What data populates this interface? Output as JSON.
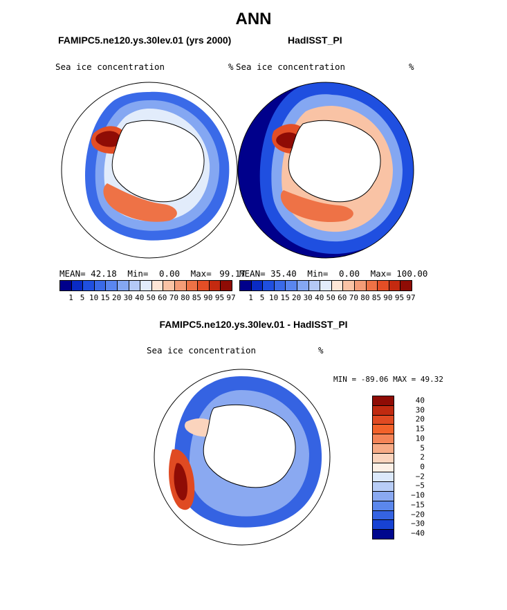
{
  "title": "ANN",
  "left_panel": {
    "title": "FAMIPC5.ne120.ys.30lev.01 (yrs 2000)",
    "variable": "Sea ice concentration",
    "units": "%",
    "stats": {
      "mean_label": "MEAN=",
      "mean": "42.18",
      "min_label": "Min=",
      "min": "0.00",
      "max_label": "Max=",
      "max": "99.17"
    }
  },
  "right_panel": {
    "title": "HadISST_PI",
    "variable": "Sea ice concentration",
    "units": "%",
    "stats": {
      "mean_label": "MEAN=",
      "mean": "35.40",
      "min_label": "Min=",
      "min": "0.00",
      "max_label": "Max=",
      "max": "100.00"
    }
  },
  "diff_panel": {
    "title": "FAMIPC5.ne120.ys.30lev.01 - HadISST_PI",
    "variable": "Sea ice concentration",
    "units": "%",
    "minmax_text": "MIN = -89.06 MAX =  49.32"
  },
  "chart_data": [
    {
      "type": "heatmap",
      "projection": "south polar stereographic",
      "title": "FAMIPC5.ne120.ys.30lev.01 (yrs 2000)",
      "variable": "Sea ice concentration (%)",
      "mean": 42.18,
      "min": 0.0,
      "max": 99.17,
      "contour_levels": [
        1,
        5,
        10,
        15,
        20,
        30,
        40,
        50,
        60,
        70,
        80,
        85,
        90,
        95,
        97
      ],
      "colorbar_labels": [
        "1",
        "5",
        "10",
        "15",
        "20",
        "30",
        "40",
        "50",
        "60",
        "70",
        "80",
        "85",
        "90",
        "95",
        "97"
      ]
    },
    {
      "type": "heatmap",
      "projection": "south polar stereographic",
      "title": "HadISST_PI",
      "variable": "Sea ice concentration (%)",
      "mean": 35.4,
      "min": 0.0,
      "max": 100.0,
      "contour_levels": [
        1,
        5,
        10,
        15,
        20,
        30,
        40,
        50,
        60,
        70,
        80,
        85,
        90,
        95,
        97
      ],
      "colorbar_labels": [
        "1",
        "5",
        "10",
        "15",
        "20",
        "30",
        "40",
        "50",
        "60",
        "70",
        "80",
        "85",
        "90",
        "95",
        "97"
      ]
    },
    {
      "type": "heatmap",
      "projection": "south polar stereographic",
      "title": "FAMIPC5.ne120.ys.30lev.01 - HadISST_PI",
      "variable": "Sea ice concentration (%)",
      "min": -89.06,
      "max": 49.32,
      "contour_levels": [
        40,
        30,
        20,
        15,
        10,
        5,
        2,
        0,
        -2,
        -5,
        -10,
        -15,
        -20,
        -30,
        -40
      ],
      "colorbar_labels": [
        "40",
        "30",
        "20",
        "15",
        "10",
        "5",
        "2",
        "0",
        "−2",
        "−5",
        "−10",
        "−15",
        "−20",
        "−30",
        "−40"
      ]
    }
  ],
  "colors": {
    "seq": [
      "#00008b",
      "#0a2bc4",
      "#1f4fe0",
      "#3a6ae8",
      "#5a86ef",
      "#84a7f2",
      "#b4c9f6",
      "#e2ecfb",
      "#fde6d6",
      "#f9c3a5",
      "#f49c77",
      "#ee7246",
      "#e34e26",
      "#c42a10",
      "#8f0c05"
    ],
    "diff": [
      "#8f0c05",
      "#c02a10",
      "#e04a22",
      "#f2622a",
      "#f48457",
      "#f7ab86",
      "#fbd4bd",
      "#fdf0e6",
      "#dce9fb",
      "#b8cdf6",
      "#8aa9f1",
      "#5b87ec",
      "#3563e2",
      "#1742d3",
      "#00088e"
    ]
  }
}
